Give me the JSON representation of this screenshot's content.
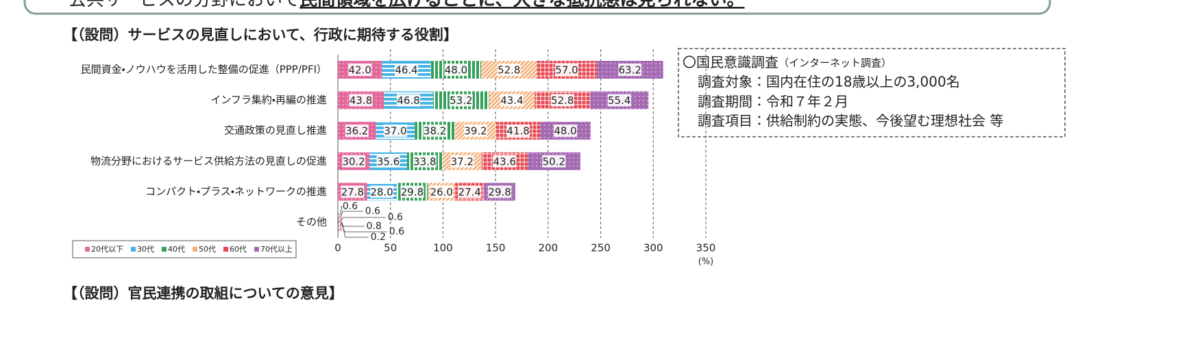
{
  "top_text": {
    "lead": "公共サービスの分野において",
    "emphasis": "民間領域を広げることに、大きな抵抗感は見られない。"
  },
  "chart_data": {
    "type": "stacked-barh",
    "title": "【（設問）サービスの見直しにおいて、行政に期待する役割】",
    "categories": [
      "民間資金・ノウハウを活用した整備の促進（PPP/PFI）",
      "インフラ集約・再編の推進",
      "交通政策の見直し推進",
      "物流分野におけるサービス供給方法の見直しの促進",
      "コンパクト・プラス・ネットワークの推進",
      "その他"
    ],
    "series": [
      {
        "name": "20代以下",
        "color": "#e2689b",
        "pattern": "dots",
        "values": [
          42.0,
          43.8,
          36.2,
          30.2,
          27.8,
          0.6
        ],
        "value_labels": [
          "42.0",
          "43.8",
          "36.2",
          "30.2",
          "27.8",
          "0.6"
        ]
      },
      {
        "name": "30代",
        "color": "#48b3e6",
        "pattern": "hstripes",
        "values": [
          46.4,
          46.8,
          37.0,
          35.6,
          28.0,
          0.6
        ],
        "value_labels": [
          "46.4",
          "46.8",
          "37.0",
          "35.6",
          "28.0",
          "0.6"
        ]
      },
      {
        "name": "40代",
        "color": "#35a05a",
        "pattern": "vstripes",
        "values": [
          48.0,
          53.2,
          38.2,
          33.8,
          29.8,
          0.6
        ],
        "value_labels": [
          "48.0",
          "53.2",
          "38.2",
          "33.8",
          "29.8",
          "0.6"
        ]
      },
      {
        "name": "50代",
        "color": "#f4ad74",
        "pattern": "diagonal",
        "values": [
          52.8,
          43.4,
          39.2,
          37.2,
          26.0,
          0.8
        ],
        "value_labels": [
          "52.8",
          "43.4",
          "39.2",
          "37.2",
          "26.0",
          "0.8"
        ]
      },
      {
        "name": "60代",
        "color": "#e6464f",
        "pattern": "grid",
        "values": [
          57.0,
          52.8,
          41.8,
          43.6,
          27.4,
          0.6
        ],
        "value_labels": [
          "57.0",
          "52.8",
          "41.8",
          "43.6",
          "27.4",
          "0.6"
        ]
      },
      {
        "name": "70代以上",
        "color": "#a66ab3",
        "pattern": "dots",
        "values": [
          63.2,
          55.4,
          48.0,
          50.2,
          29.8,
          0.2
        ],
        "value_labels": [
          "63.2",
          "55.4",
          "48.0",
          "50.2",
          "29.8",
          "0.2"
        ]
      }
    ],
    "xlim": [
      0,
      350
    ],
    "xticks": [
      0,
      50,
      100,
      150,
      200,
      250,
      300,
      350
    ],
    "xlabel": "(%)",
    "grid": true,
    "legend": "lower left"
  },
  "survey_box": {
    "title": "〇国民意識調査",
    "note": "（インターネット調査）",
    "lines": [
      "調査対象：国内在住の18歳以上の3,000名",
      "調査期間：令和７年２月",
      "調査項目：供給制約の実態、今後望む理想社会 等"
    ]
  },
  "next_section_title": "【（設問）官民連携の取組についての意見】"
}
